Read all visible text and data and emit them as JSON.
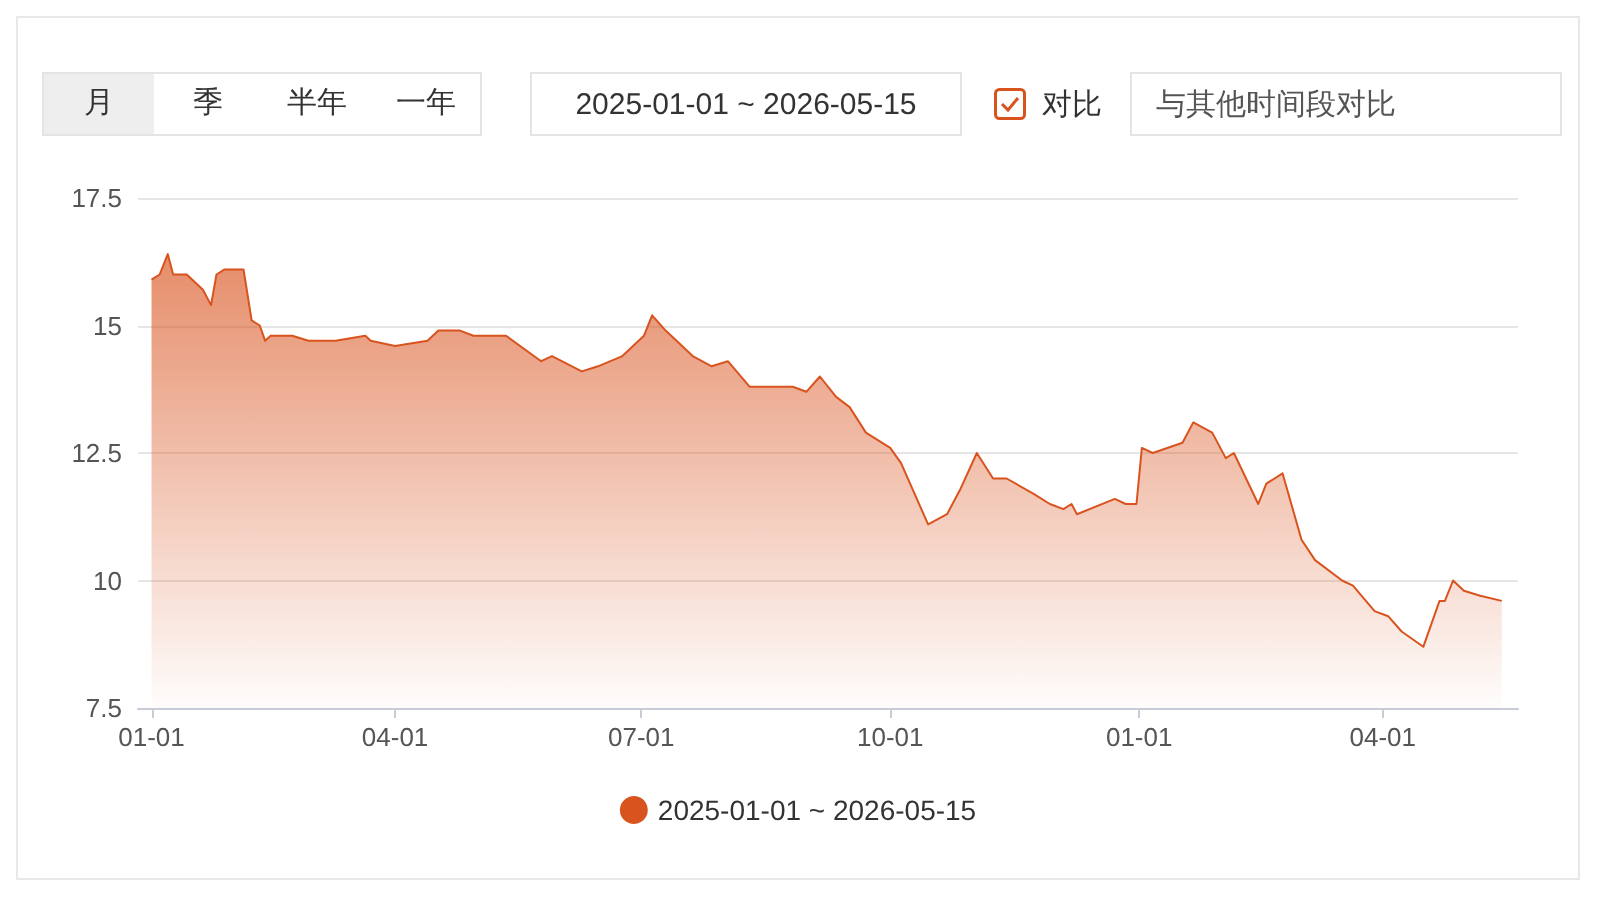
{
  "chart_data": {
    "type": "area",
    "annotations": [
      "月",
      "季",
      "半年",
      "一年",
      "2025-01-01 ~ 2026-05-15",
      "对比",
      "与其他时间段对比"
    ],
    "x": [
      "2025-01-01",
      "2025-01-04",
      "2025-01-07",
      "2025-01-09",
      "2025-01-14",
      "2025-01-20",
      "2025-01-23",
      "2025-01-25",
      "2025-01-28",
      "2025-02-04",
      "2025-02-07",
      "2025-02-10",
      "2025-02-12",
      "2025-02-14",
      "2025-02-22",
      "2025-02-28",
      "2025-03-10",
      "2025-03-21",
      "2025-03-23",
      "2025-04-01",
      "2025-04-13",
      "2025-04-17",
      "2025-04-25",
      "2025-04-30",
      "2025-05-12",
      "2025-05-25",
      "2025-05-29",
      "2025-06-09",
      "2025-06-15",
      "2025-06-24",
      "2025-07-02",
      "2025-07-05",
      "2025-07-10",
      "2025-07-20",
      "2025-07-27",
      "2025-08-02",
      "2025-08-10",
      "2025-08-26",
      "2025-08-31",
      "2025-09-05",
      "2025-09-11",
      "2025-09-16",
      "2025-09-22",
      "2025-10-01",
      "2025-10-05",
      "2025-10-15",
      "2025-10-22",
      "2025-10-27",
      "2025-11-02",
      "2025-11-08",
      "2025-11-13",
      "2025-11-23",
      "2025-11-29",
      "2025-12-04",
      "2025-12-07",
      "2025-12-09",
      "2025-12-23",
      "2025-12-27",
      "2025-12-31",
      "2026-01-02",
      "2026-01-06",
      "2026-01-17",
      "2026-01-21",
      "2026-01-28",
      "2026-02-02",
      "2026-02-05",
      "2026-02-14",
      "2026-02-17",
      "2026-02-23",
      "2026-03-02",
      "2026-03-07",
      "2026-03-17",
      "2026-03-21",
      "2026-03-29",
      "2026-04-03",
      "2026-04-08",
      "2026-04-16",
      "2026-04-22",
      "2026-04-24",
      "2026-04-27",
      "2026-05-01",
      "2026-05-07",
      "2026-05-15"
    ],
    "series": [
      {
        "name": "2025-01-01 ~ 2026-05-15",
        "color": "#d9531e",
        "values": [
          15.9,
          16.0,
          16.4,
          16.0,
          16.0,
          15.7,
          15.4,
          16.0,
          16.1,
          16.1,
          15.1,
          15.0,
          14.7,
          14.8,
          14.8,
          14.7,
          14.7,
          14.8,
          14.7,
          14.6,
          14.7,
          14.9,
          14.9,
          14.8,
          14.8,
          14.3,
          14.4,
          14.1,
          14.2,
          14.4,
          14.8,
          15.2,
          14.9,
          14.4,
          14.2,
          14.3,
          13.8,
          13.8,
          13.7,
          14.0,
          13.6,
          13.4,
          12.9,
          12.6,
          12.3,
          11.1,
          11.3,
          11.8,
          12.5,
          12.0,
          12.0,
          11.7,
          11.5,
          11.4,
          11.5,
          11.3,
          11.6,
          11.5,
          11.5,
          12.6,
          12.5,
          12.7,
          13.1,
          12.9,
          12.4,
          12.5,
          11.5,
          11.9,
          12.1,
          10.8,
          10.4,
          10.0,
          9.9,
          9.4,
          9.3,
          9.0,
          8.7,
          9.6,
          9.6,
          10.0,
          9.8,
          9.7,
          9.6
        ]
      }
    ],
    "xlim": [
      "2024-12-27",
      "2026-05-21"
    ],
    "xticks": [
      {
        "value": "2025-01-01",
        "label": "01-01"
      },
      {
        "value": "2025-04-01",
        "label": "04-01"
      },
      {
        "value": "2025-07-01",
        "label": "07-01"
      },
      {
        "value": "2025-10-01",
        "label": "10-01"
      },
      {
        "value": "2026-01-01",
        "label": "01-01"
      },
      {
        "value": "2026-04-01",
        "label": "04-01"
      }
    ],
    "ylim": [
      7.5,
      17.5
    ],
    "yticks": [
      7.5,
      10,
      12.5,
      15,
      17.5
    ],
    "grid": "y",
    "legend": "bottom"
  }
}
